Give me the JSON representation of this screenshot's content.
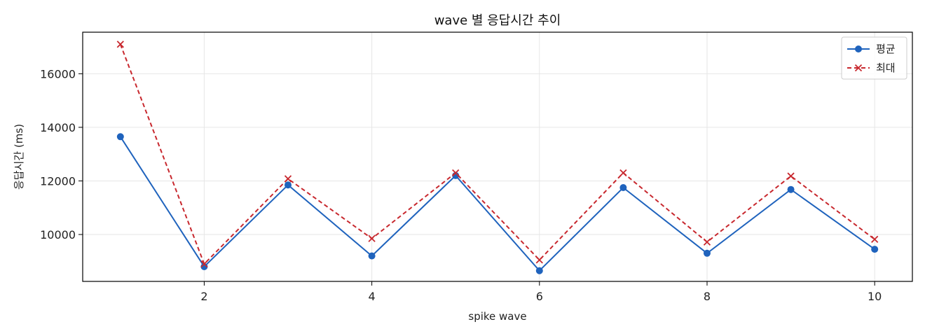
{
  "chart_data": {
    "type": "line",
    "title": "wave 별 응답시간 추이",
    "xlabel": "spike wave",
    "ylabel": "응답시간 (ms)",
    "x": [
      1,
      2,
      3,
      4,
      5,
      6,
      7,
      8,
      9,
      10
    ],
    "xlim": [
      0.55,
      10.45
    ],
    "ylim": [
      8250,
      17550
    ],
    "x_ticks": [
      2,
      4,
      6,
      8,
      10
    ],
    "y_ticks": [
      10000,
      12000,
      14000,
      16000
    ],
    "grid": true,
    "legend_position": "top-right",
    "series": [
      {
        "name": "평균",
        "values": [
          13650,
          8800,
          11850,
          9200,
          12200,
          8650,
          11750,
          9300,
          11680,
          9450
        ],
        "color": "#1f63bd",
        "line_style": "solid",
        "marker": "circle"
      },
      {
        "name": "최대",
        "values": [
          17100,
          8900,
          12080,
          9850,
          12300,
          9050,
          12300,
          9720,
          12180,
          9820
        ],
        "color": "#c8282e",
        "line_style": "dashed",
        "marker": "x"
      }
    ]
  }
}
